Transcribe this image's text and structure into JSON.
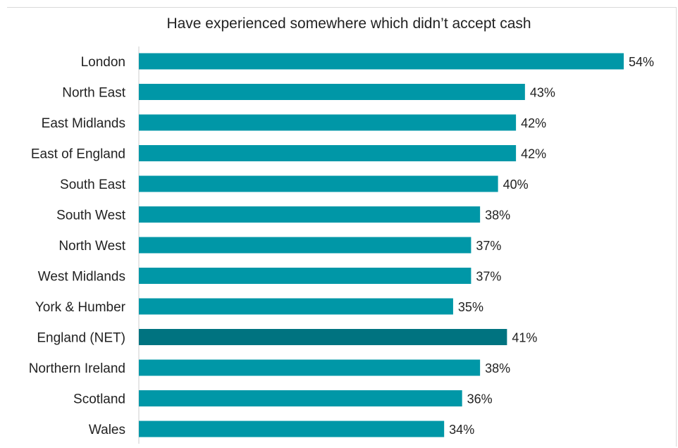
{
  "chart_data": {
    "type": "bar",
    "orientation": "horizontal",
    "title": "Have experienced somewhere which didn’t accept cash",
    "categories": [
      "London",
      "North East",
      "East Midlands",
      "East of England",
      "South East",
      "South West",
      "North West",
      "West Midlands",
      "York & Humber",
      "England (NET)",
      "Northern Ireland",
      "Scotland",
      "Wales"
    ],
    "values": [
      54,
      43,
      42,
      42,
      40,
      38,
      37,
      37,
      35,
      41,
      38,
      36,
      34
    ],
    "value_labels": [
      "54%",
      "43%",
      "42%",
      "42%",
      "40%",
      "38%",
      "37%",
      "37%",
      "35%",
      "41%",
      "38%",
      "36%",
      "34%"
    ],
    "unit": "%",
    "xlim": [
      0,
      54
    ],
    "grid": false,
    "colors": {
      "bar": "#0097a7",
      "highlight": "#007380",
      "axis": "#cccccc"
    },
    "highlight_category": "England (NET)"
  }
}
